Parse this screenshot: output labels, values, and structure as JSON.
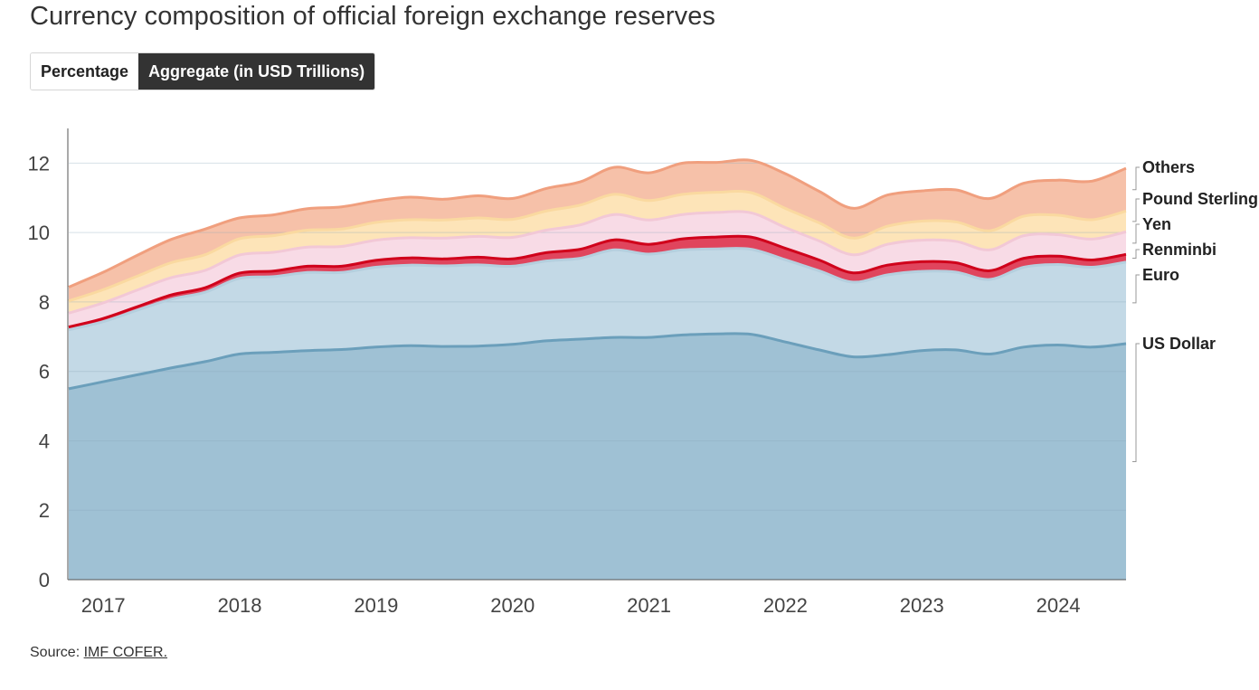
{
  "title": "Currency composition of official foreign exchange reserves",
  "toggle": {
    "percentage_label": "Percentage",
    "aggregate_label": "Aggregate (in USD Trillions)",
    "selected": "aggregate"
  },
  "source": {
    "prefix": "Source:",
    "link_text": "IMF COFER."
  },
  "chart_data": {
    "type": "area",
    "stacked": true,
    "ylim": [
      0,
      13
    ],
    "yticks": [
      0,
      2,
      4,
      6,
      8,
      10,
      12
    ],
    "xlim": [
      2016.75,
      2024.5
    ],
    "xticks": [
      2017,
      2018,
      2019,
      2020,
      2021,
      2022,
      2023,
      2024
    ],
    "grid": true,
    "legend_placement": "right",
    "x": [
      2016.75,
      2017.0,
      2017.25,
      2017.5,
      2017.75,
      2018.0,
      2018.25,
      2018.5,
      2018.75,
      2019.0,
      2019.25,
      2019.5,
      2019.75,
      2020.0,
      2020.25,
      2020.5,
      2020.75,
      2021.0,
      2021.25,
      2021.5,
      2021.75,
      2022.0,
      2022.25,
      2022.5,
      2022.75,
      2023.0,
      2023.25,
      2023.5,
      2023.75,
      2024.0,
      2024.25,
      2024.5
    ],
    "series": [
      {
        "name": "US Dollar",
        "color": "#9fc1d4",
        "line": "#6b9fbb",
        "values": [
          5.5,
          5.7,
          5.9,
          6.1,
          6.28,
          6.5,
          6.55,
          6.6,
          6.63,
          6.7,
          6.74,
          6.72,
          6.73,
          6.78,
          6.88,
          6.93,
          6.98,
          6.98,
          7.05,
          7.08,
          7.07,
          6.85,
          6.62,
          6.42,
          6.48,
          6.6,
          6.62,
          6.5,
          6.7,
          6.76,
          6.7,
          6.8
        ]
      },
      {
        "name": "Euro",
        "color": "#c3d9e6",
        "line": "#b5cfde",
        "values": [
          1.7,
          1.73,
          1.86,
          1.98,
          2.0,
          2.18,
          2.18,
          2.25,
          2.22,
          2.3,
          2.32,
          2.32,
          2.34,
          2.25,
          2.3,
          2.33,
          2.52,
          2.4,
          2.45,
          2.45,
          2.45,
          2.37,
          2.28,
          2.15,
          2.3,
          2.28,
          2.24,
          2.15,
          2.3,
          2.32,
          2.3,
          2.35
        ]
      },
      {
        "name": "Renminbi",
        "color": "#e0455d",
        "line": "#d0021b",
        "values": [
          0.08,
          0.09,
          0.1,
          0.12,
          0.13,
          0.15,
          0.16,
          0.18,
          0.18,
          0.2,
          0.21,
          0.2,
          0.22,
          0.21,
          0.24,
          0.26,
          0.29,
          0.28,
          0.32,
          0.34,
          0.35,
          0.33,
          0.31,
          0.27,
          0.28,
          0.28,
          0.27,
          0.25,
          0.26,
          0.24,
          0.21,
          0.22
        ]
      },
      {
        "name": "Yen",
        "color": "#f8dbe6",
        "line": "#f2c8d6",
        "values": [
          0.4,
          0.45,
          0.48,
          0.5,
          0.5,
          0.52,
          0.54,
          0.55,
          0.57,
          0.58,
          0.58,
          0.6,
          0.6,
          0.62,
          0.65,
          0.7,
          0.73,
          0.7,
          0.7,
          0.71,
          0.7,
          0.6,
          0.55,
          0.52,
          0.6,
          0.62,
          0.62,
          0.6,
          0.65,
          0.62,
          0.6,
          0.65
        ]
      },
      {
        "name": "Pound Sterling",
        "color": "#fde4b8",
        "line": "#fad9a0",
        "values": [
          0.35,
          0.38,
          0.4,
          0.43,
          0.45,
          0.47,
          0.48,
          0.49,
          0.5,
          0.51,
          0.52,
          0.52,
          0.53,
          0.52,
          0.55,
          0.57,
          0.58,
          0.56,
          0.58,
          0.58,
          0.58,
          0.55,
          0.52,
          0.48,
          0.52,
          0.55,
          0.56,
          0.55,
          0.56,
          0.56,
          0.56,
          0.6
        ]
      },
      {
        "name": "Others",
        "color": "#f6c1a9",
        "line": "#f09f7e",
        "values": [
          0.4,
          0.5,
          0.6,
          0.67,
          0.74,
          0.6,
          0.6,
          0.62,
          0.64,
          0.62,
          0.65,
          0.6,
          0.64,
          0.6,
          0.65,
          0.67,
          0.78,
          0.8,
          0.9,
          0.86,
          0.93,
          1.0,
          0.91,
          0.86,
          0.9,
          0.87,
          0.92,
          0.93,
          0.95,
          1.01,
          1.11,
          1.23
        ]
      }
    ]
  }
}
